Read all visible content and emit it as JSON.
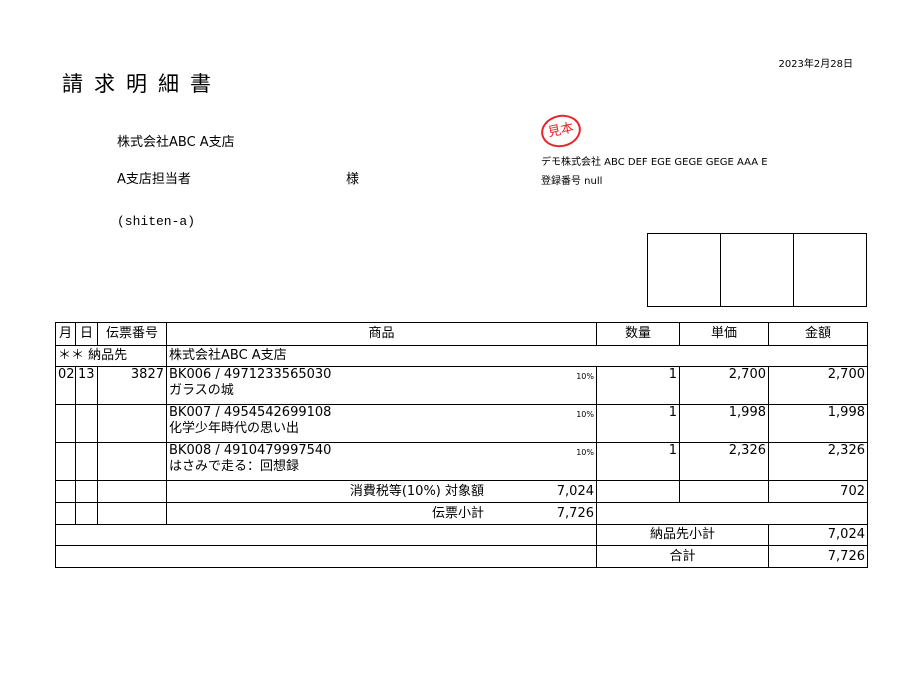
{
  "title": "請求明細書",
  "date": "2023年2月28日",
  "customer": {
    "name": "株式会社ABC A支店",
    "contact": "A支店担当者",
    "honorific": "様",
    "code": "(shiten-a)"
  },
  "issuer": {
    "stamp_text": "見本",
    "stamp_color": "#e8242a",
    "company": "デモ株式会社 ABC DEF EGE GEGE GEGE AAA E",
    "registration": "登録番号 null"
  },
  "table": {
    "headers": [
      "月",
      "日",
      "伝票番号",
      "商品",
      "数量",
      "単価",
      "金額"
    ],
    "delivery": {
      "marker": "＊＊",
      "label": "納品先",
      "name": "株式会社ABC A支店"
    },
    "rows": [
      {
        "month": "02",
        "day": "13",
        "slip": "3827",
        "code": "BK006 / 4971233565030",
        "name": "ガラスの城",
        "tax": "10%",
        "qty": "1",
        "price": "2,700",
        "amount": "2,700"
      },
      {
        "month": "",
        "day": "",
        "slip": "",
        "code": "BK007 / 4954542699108",
        "name": "化学少年時代の思い出",
        "tax": "10%",
        "qty": "1",
        "price": "1,998",
        "amount": "1,998"
      },
      {
        "month": "",
        "day": "",
        "slip": "",
        "code": "BK008 / 4910479997540",
        "name": "はさみで走る：回想録",
        "tax": "10%",
        "qty": "1",
        "price": "2,326",
        "amount": "2,326"
      }
    ],
    "tax_label": "消費税等(10%) 対象額",
    "tax_base": "7,024",
    "tax_amount": "702",
    "slip_subtotal_label": "伝票小計",
    "slip_subtotal": "7,726",
    "delivery_subtotal_label": "納品先小計",
    "delivery_subtotal": "7,024",
    "total_label": "合計",
    "total": "7,726"
  }
}
